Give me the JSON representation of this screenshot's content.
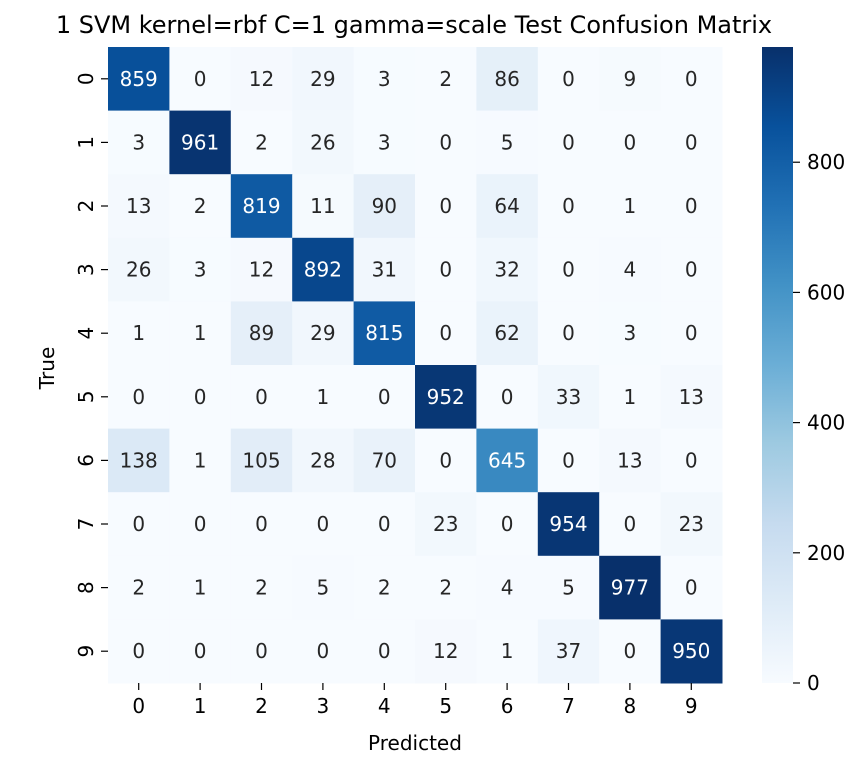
{
  "chart_data": {
    "type": "heatmap",
    "title": "1 SVM kernel=rbf C=1 gamma=scale Test Confusion Matrix",
    "xlabel": "Predicted",
    "ylabel": "True",
    "x_categories": [
      "0",
      "1",
      "2",
      "3",
      "4",
      "5",
      "6",
      "7",
      "8",
      "9"
    ],
    "y_categories": [
      "0",
      "1",
      "2",
      "3",
      "4",
      "5",
      "6",
      "7",
      "8",
      "9"
    ],
    "values": [
      [
        859,
        0,
        12,
        29,
        3,
        2,
        86,
        0,
        9,
        0
      ],
      [
        3,
        961,
        2,
        26,
        3,
        0,
        5,
        0,
        0,
        0
      ],
      [
        13,
        2,
        819,
        11,
        90,
        0,
        64,
        0,
        1,
        0
      ],
      [
        26,
        3,
        12,
        892,
        31,
        0,
        32,
        0,
        4,
        0
      ],
      [
        1,
        1,
        89,
        29,
        815,
        0,
        62,
        0,
        3,
        0
      ],
      [
        0,
        0,
        0,
        1,
        0,
        952,
        0,
        33,
        1,
        13
      ],
      [
        138,
        1,
        105,
        28,
        70,
        0,
        645,
        0,
        13,
        0
      ],
      [
        0,
        0,
        0,
        0,
        0,
        23,
        0,
        954,
        0,
        23
      ],
      [
        2,
        1,
        2,
        5,
        2,
        2,
        4,
        5,
        977,
        0
      ],
      [
        0,
        0,
        0,
        0,
        0,
        12,
        1,
        37,
        0,
        950
      ]
    ],
    "colormap": "Blues",
    "vmin": 0,
    "vmax": 977,
    "colorbar_ticks": [
      0,
      200,
      400,
      600,
      800
    ],
    "grid": false
  }
}
